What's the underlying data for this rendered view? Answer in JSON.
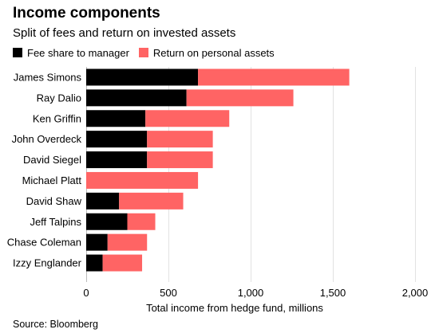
{
  "title": "Income components",
  "subtitle": "Split of fees and return on invested assets",
  "source": "Source: Bloomberg",
  "colors": {
    "fee": "#000000",
    "return": "#ff6464",
    "grid": "#e2e2e2",
    "text": "#000000"
  },
  "chart_data": {
    "type": "bar",
    "orientation": "horizontal",
    "stacked": true,
    "categories": [
      "James Simons",
      "Ray Dalio",
      "Ken Griffin",
      "John Overdeck",
      "David Siegel",
      "Michael Platt",
      "David Shaw",
      "Jeff Talpins",
      "Chase Coleman",
      "Izzy Englander"
    ],
    "series": [
      {
        "name": "Fee share to manager",
        "color": "#000000",
        "values": [
          680,
          610,
          360,
          370,
          370,
          0,
          200,
          250,
          130,
          100
        ]
      },
      {
        "name": "Return on personal assets",
        "color": "#ff6464",
        "values": [
          920,
          650,
          510,
          400,
          400,
          680,
          390,
          170,
          240,
          240
        ]
      }
    ],
    "xlabel": "Total income from hedge fund, millions",
    "ylabel": "",
    "xlim": [
      0,
      2000
    ],
    "xticks": [
      0,
      500,
      1000,
      1500,
      2000
    ],
    "xtick_labels": [
      "0",
      "500",
      "1,000",
      "1,500",
      "2,000"
    ],
    "grid": true,
    "legend_position": "top-left"
  }
}
